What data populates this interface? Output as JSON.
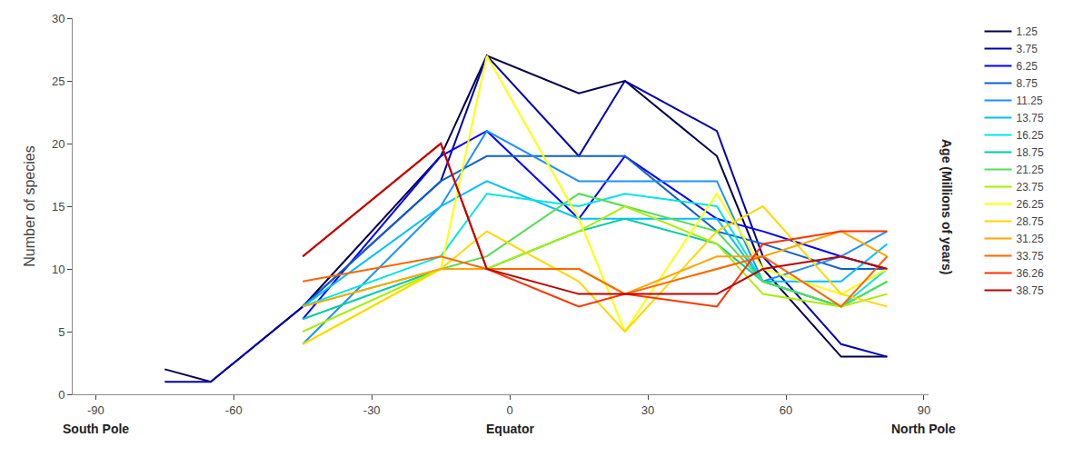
{
  "chart_data": {
    "type": "line",
    "x": [
      -75,
      -65,
      -45,
      -15,
      -5,
      15,
      25,
      45,
      55,
      72,
      82
    ],
    "series": [
      {
        "name": "1.25",
        "color": "#00004B",
        "values": [
          2,
          1,
          7,
          19,
          27,
          24,
          25,
          19,
          10,
          3,
          3
        ]
      },
      {
        "name": "3.75",
        "color": "#0000AA",
        "values": [
          1,
          1,
          7,
          17,
          27,
          19,
          25,
          21,
          11,
          4,
          3
        ]
      },
      {
        "name": "6.25",
        "color": "#0000FF",
        "values": [
          null,
          null,
          6,
          19,
          21,
          14,
          19,
          14,
          13,
          11,
          10
        ]
      },
      {
        "name": "8.75",
        "color": "#1060CC",
        "values": [
          null,
          null,
          7,
          17,
          19,
          19,
          19,
          13,
          12,
          10,
          10
        ]
      },
      {
        "name": "11.25",
        "color": "#1E90FF",
        "values": [
          null,
          null,
          4,
          15,
          21,
          17,
          17,
          17,
          9,
          11,
          13
        ]
      },
      {
        "name": "13.75",
        "color": "#00BFFF",
        "values": [
          null,
          null,
          7,
          15,
          17,
          14,
          14,
          14,
          9,
          9,
          12
        ]
      },
      {
        "name": "16.25",
        "color": "#00E5E5",
        "values": [
          null,
          null,
          7,
          11,
          16,
          15,
          16,
          15,
          9,
          7,
          10
        ]
      },
      {
        "name": "18.75",
        "color": "#00CCAA",
        "values": [
          null,
          null,
          6,
          10,
          10,
          13,
          14,
          12,
          9,
          7,
          9
        ]
      },
      {
        "name": "21.25",
        "color": "#55DD55",
        "values": [
          null,
          null,
          7,
          10,
          11,
          16,
          15,
          13,
          9,
          7,
          9
        ]
      },
      {
        "name": "23.75",
        "color": "#AAEE00",
        "values": [
          null,
          null,
          5,
          10,
          10,
          13,
          15,
          12,
          8,
          7,
          8
        ]
      },
      {
        "name": "26.25",
        "color": "#FFFF00",
        "values": [
          null,
          null,
          4,
          10,
          27,
          14,
          5,
          16,
          10,
          8,
          10
        ]
      },
      {
        "name": "28.75",
        "color": "#FFD700",
        "values": [
          null,
          null,
          4,
          10,
          13,
          9,
          5,
          13,
          15,
          8,
          7
        ]
      },
      {
        "name": "31.25",
        "color": "#FFA500",
        "values": [
          null,
          null,
          7,
          10,
          10,
          10,
          8,
          11,
          11,
          13,
          11
        ]
      },
      {
        "name": "33.75",
        "color": "#FF6600",
        "values": [
          null,
          null,
          9,
          11,
          10,
          10,
          8,
          10,
          11,
          7,
          11
        ]
      },
      {
        "name": "36.26",
        "color": "#FF3300",
        "values": [
          null,
          null,
          11,
          20,
          10,
          7,
          8,
          7,
          12,
          13,
          13
        ]
      },
      {
        "name": "38.75",
        "color": "#BB0000",
        "values": [
          null,
          null,
          11,
          20,
          10,
          8,
          8,
          8,
          10,
          11,
          10
        ]
      }
    ],
    "xlim": [
      -95,
      91
    ],
    "xticks": [
      -90,
      -60,
      -30,
      0,
      30,
      60,
      90
    ],
    "ylim": [
      0,
      30
    ],
    "yticks": [
      0,
      5,
      10,
      15,
      20,
      25,
      30
    ],
    "ylabel": "Number of species",
    "y2label": "Age (Millions of years)",
    "annotations": [
      {
        "text": "South Pole",
        "x": -90
      },
      {
        "text": "Equator",
        "x": 0
      },
      {
        "text": "North Pole",
        "x": 90
      }
    ],
    "grid": false,
    "legend": "right"
  }
}
